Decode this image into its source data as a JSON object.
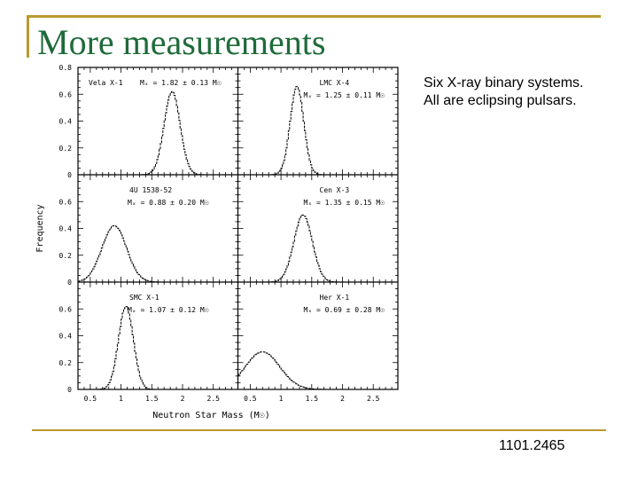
{
  "slide": {
    "title": "More measurements",
    "description_line1": "Six X-ray binary systems.",
    "description_line2": "All are eclipsing pulsars.",
    "reference": "1101.2465"
  },
  "colors": {
    "title": "#1e6b3a",
    "rule": "#b99a2e",
    "plot": "#000000"
  },
  "chart_data": {
    "type": "line",
    "xlabel": "Neutron Star Mass (M☉)",
    "ylabel": "Frequency",
    "xlim": [
      0.3,
      2.9
    ],
    "x_ticks": [
      "0.5",
      "1",
      "1.5",
      "2",
      "2.5"
    ],
    "y_ticks_top_row": [
      "0",
      "0.2",
      "0.4",
      "0.6",
      "0.8"
    ],
    "y_ticks": [
      "0",
      "0.2",
      "0.4",
      "0.6"
    ],
    "panels": [
      {
        "name": "Vela X-1",
        "mass_label": "Mₓ = 1.82 ± 0.13 M☉",
        "mean": 1.82,
        "sigma": 0.13,
        "peak": 0.62,
        "ylim": [
          0,
          0.8
        ]
      },
      {
        "name": "LMC X-4",
        "mass_label": "Mₓ = 1.25 ± 0.11 M☉",
        "mean": 1.25,
        "sigma": 0.11,
        "peak": 0.66,
        "ylim": [
          0,
          0.8
        ]
      },
      {
        "name": "4U 1538-52",
        "mass_label": "Mₓ = 0.88 ± 0.20 M☉",
        "mean": 0.88,
        "sigma": 0.2,
        "peak": 0.42,
        "ylim": [
          0,
          0.8
        ]
      },
      {
        "name": "Cen X-3",
        "mass_label": "Mₓ = 1.35 ± 0.15 M☉",
        "mean": 1.35,
        "sigma": 0.15,
        "peak": 0.5,
        "ylim": [
          0,
          0.8
        ]
      },
      {
        "name": "SMC X-1",
        "mass_label": "Mₓ = 1.07 ± 0.12 M☉",
        "mean": 1.07,
        "sigma": 0.12,
        "peak": 0.62,
        "ylim": [
          0,
          0.8
        ]
      },
      {
        "name": "Her X-1",
        "mass_label": "Mₓ = 0.69 ± 0.28 M☉",
        "mean": 0.69,
        "sigma": 0.28,
        "peak": 0.28,
        "ylim": [
          0,
          0.8
        ]
      }
    ]
  }
}
